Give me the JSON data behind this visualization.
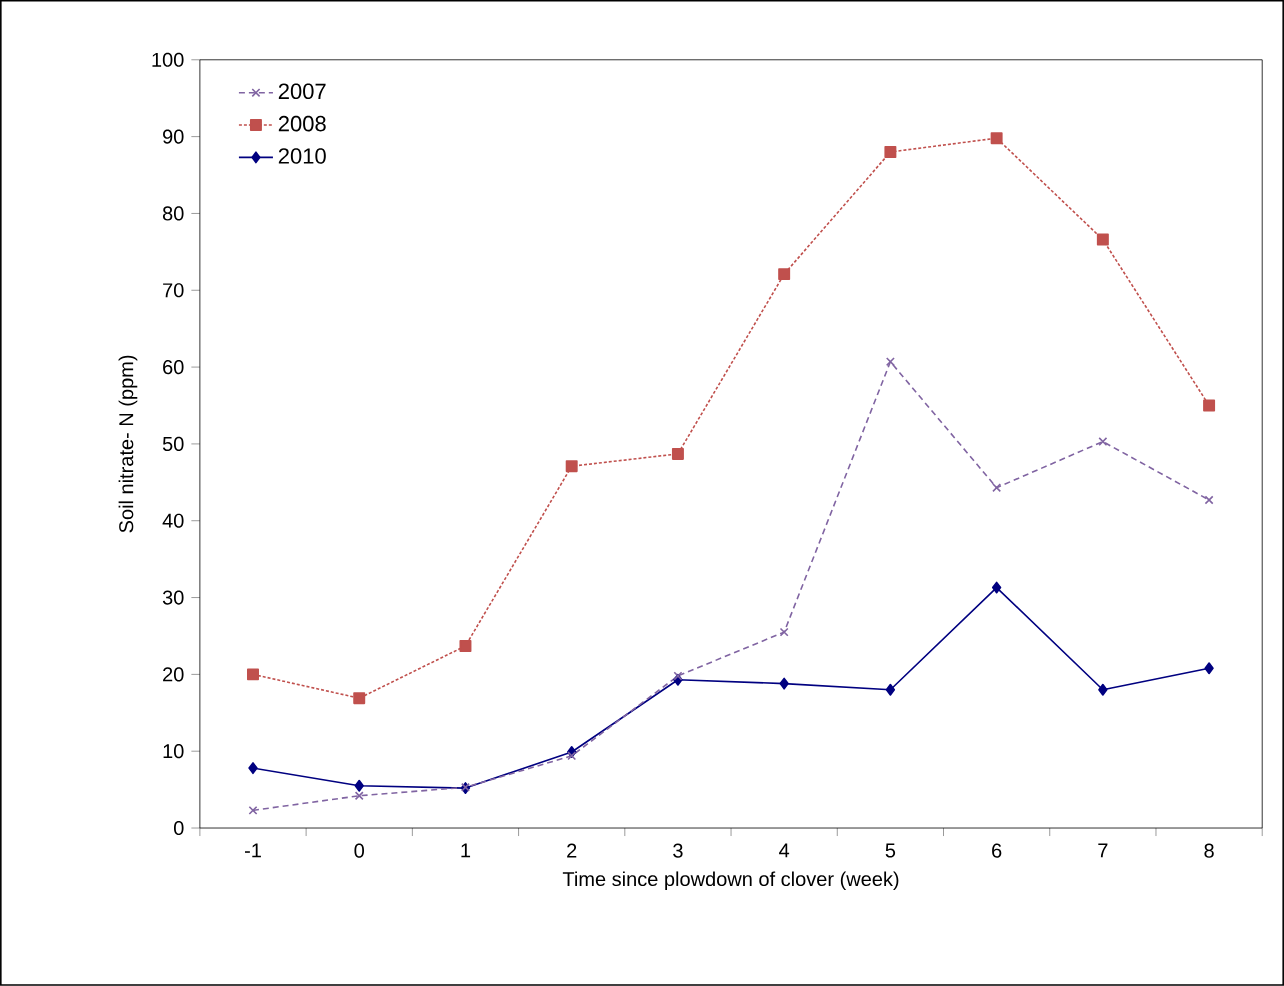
{
  "chart_data": {
    "type": "line",
    "xlabel": "Time since plowdown of clover  (week)",
    "ylabel": "Soil nitrate- N (ppm)",
    "categories": [
      "-1",
      "0",
      "1",
      "2",
      "3",
      "4",
      "5",
      "6",
      "7",
      "8"
    ],
    "ylim": [
      0,
      100
    ],
    "yticks": [
      0,
      10,
      20,
      30,
      40,
      50,
      60,
      70,
      80,
      90,
      100
    ],
    "grid": false,
    "legend": "top left",
    "series": [
      {
        "name": "2007",
        "color": "#8064a2",
        "marker": "cross",
        "line_style": "dashed",
        "values": [
          2.3,
          4.2,
          5.3,
          9.4,
          19.8,
          25.5,
          60.7,
          44.3,
          50.3,
          42.7
        ]
      },
      {
        "name": "2008",
        "color": "#c0504d",
        "marker": "square",
        "line_style": "dotted",
        "values": [
          20,
          16.9,
          23.7,
          47.1,
          48.7,
          72.1,
          88,
          89.8,
          76.6,
          55
        ]
      },
      {
        "name": "2010",
        "color": "#000080",
        "marker": "diamond",
        "line_style": "solid",
        "values": [
          7.8,
          5.5,
          5.2,
          9.9,
          19.3,
          18.8,
          18,
          31.3,
          18,
          20.8
        ]
      }
    ]
  }
}
